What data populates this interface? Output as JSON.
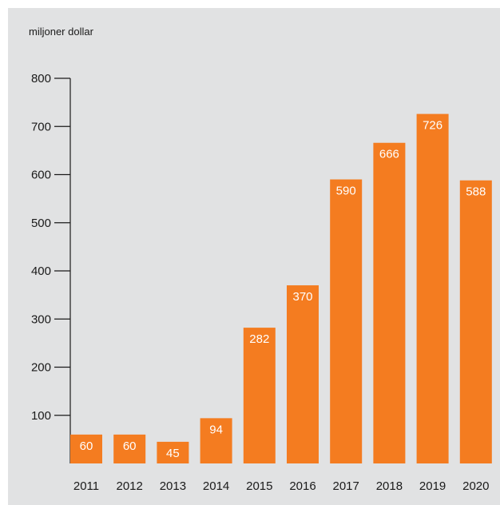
{
  "chart_data": {
    "type": "bar",
    "ylabel": "miljoner dollar",
    "categories": [
      "2011",
      "2012",
      "2013",
      "2014",
      "2015",
      "2016",
      "2017",
      "2018",
      "2019",
      "2020"
    ],
    "values": [
      60,
      60,
      45,
      94,
      282,
      370,
      590,
      666,
      726,
      588
    ],
    "value_labels": [
      "60",
      "60",
      "45",
      "94",
      "282",
      "370",
      "590",
      "666",
      "726",
      "588"
    ],
    "yticks": [
      100,
      200,
      300,
      400,
      500,
      600,
      700,
      800
    ],
    "ytick_labels": [
      "100",
      "200",
      "300",
      "400",
      "500",
      "600",
      "700",
      "800"
    ],
    "ylim": [
      0,
      800
    ],
    "grid": false,
    "bar_color": "#f47c20",
    "background_color": "#e1e2e3"
  }
}
